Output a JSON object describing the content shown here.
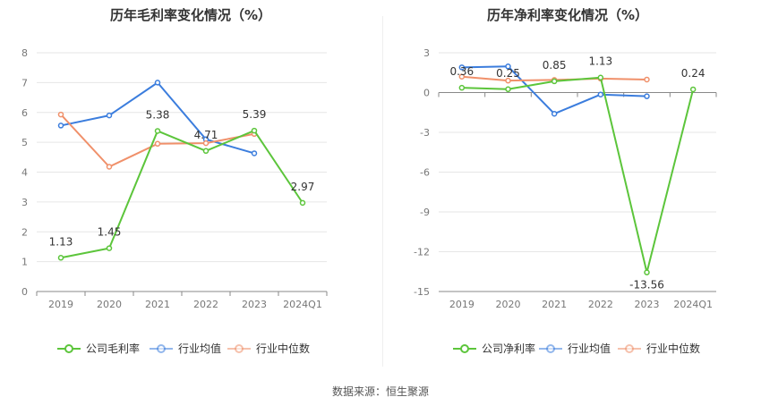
{
  "source_label": "数据来源：恒生聚源",
  "chart_data": [
    {
      "type": "line",
      "title": "历年毛利率变化情况（%）",
      "categories": [
        "2019",
        "2020",
        "2021",
        "2022",
        "2023",
        "2024Q1"
      ],
      "ylim": [
        0,
        8
      ],
      "yticks": [
        0,
        1,
        2,
        3,
        4,
        5,
        6,
        7,
        8
      ],
      "grid": true,
      "legend_position": "bottom",
      "series": [
        {
          "name": "公司毛利率",
          "color": "#5cc53b",
          "values": [
            1.13,
            1.45,
            5.38,
            4.71,
            5.39,
            2.97
          ],
          "labels": [
            "1.13",
            "1.45",
            "5.38",
            "4.71",
            "5.39",
            "2.97"
          ]
        },
        {
          "name": "行业均值",
          "color": "#3b7ddd",
          "values": [
            5.56,
            5.9,
            7.0,
            5.1,
            4.63,
            null
          ]
        },
        {
          "name": "行业中位数",
          "color": "#f0906a",
          "values": [
            5.93,
            4.18,
            4.95,
            4.97,
            5.28,
            null
          ]
        }
      ]
    },
    {
      "type": "line",
      "title": "历年净利率变化情况（%）",
      "categories": [
        "2019",
        "2020",
        "2021",
        "2022",
        "2023",
        "2024Q1"
      ],
      "ylim": [
        -15,
        3
      ],
      "yticks": [
        -15,
        -12,
        -9,
        -6,
        -3,
        0,
        3
      ],
      "grid": true,
      "legend_position": "bottom",
      "series": [
        {
          "name": "公司净利率",
          "color": "#5cc53b",
          "values": [
            0.36,
            0.25,
            0.85,
            1.13,
            -13.56,
            0.24
          ],
          "labels": [
            "0.36",
            "0.25",
            "0.85",
            "1.13",
            "-13.56",
            "0.24"
          ]
        },
        {
          "name": "行业均值",
          "color": "#3b7ddd",
          "values": [
            1.9,
            1.97,
            -1.6,
            -0.15,
            -0.28,
            null
          ]
        },
        {
          "name": "行业中位数",
          "color": "#f0906a",
          "values": [
            1.2,
            0.9,
            0.95,
            1.05,
            0.98,
            null
          ]
        }
      ]
    }
  ]
}
